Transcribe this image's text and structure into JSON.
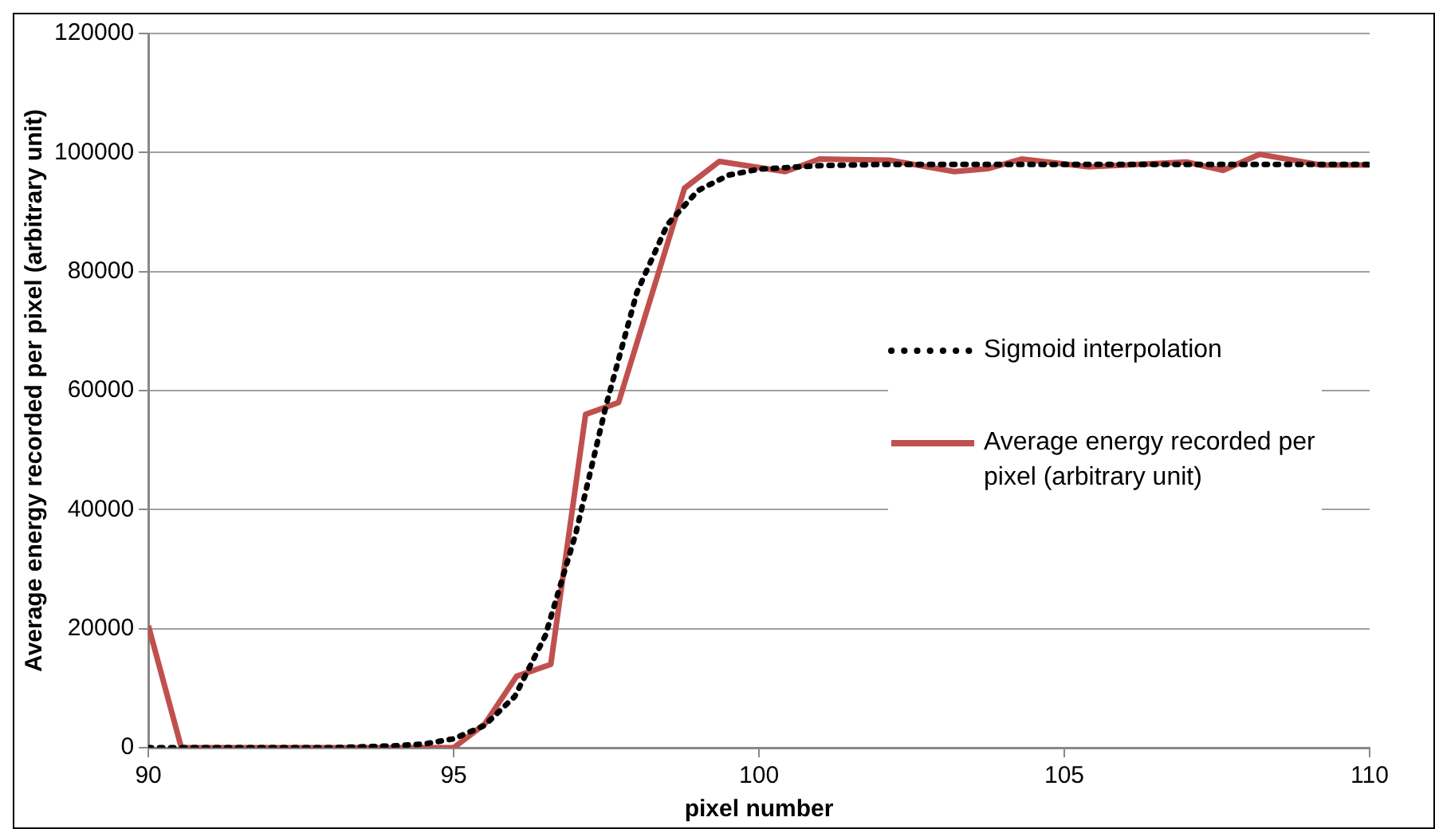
{
  "chart_data": {
    "type": "line",
    "xlabel": "pixel number",
    "ylabel": "Average energy recorded per pixel (arbitrary unit)",
    "xlim": [
      90,
      110
    ],
    "xticks": [
      90,
      95,
      100,
      105,
      110
    ],
    "ylim": [
      0,
      120000
    ],
    "yticks": [
      0,
      20000,
      40000,
      60000,
      80000,
      100000,
      120000
    ],
    "grid": "y",
    "legend": "right",
    "tick_labels": "xy",
    "series": [
      {
        "name": "Sigmoid interpolation",
        "color": "#000000",
        "line_style": "dotted",
        "x": [
          90,
          91,
          92,
          93,
          94,
          94.5,
          95,
          95.5,
          96,
          96.5,
          97,
          97.5,
          98,
          98.5,
          99,
          99.5,
          100,
          101,
          102,
          103,
          104,
          105,
          106,
          107,
          108,
          109,
          110
        ],
        "values": [
          0,
          0,
          0,
          0,
          300,
          600,
          1500,
          3700,
          8600,
          18800,
          36000,
          57700,
          76500,
          87900,
          93600,
          96200,
          97200,
          97800,
          98000,
          98000,
          98000,
          98000,
          98000,
          98000,
          98000,
          98000,
          98000
        ]
      },
      {
        "name": "Average energy recorded per pixel (arbitrary unit)",
        "color": "#c0504d",
        "line_style": "solid",
        "x": [
          90,
          90.54,
          95,
          95.51,
          96.03,
          96.59,
          97.16,
          97.7,
          98.78,
          99.35,
          100.43,
          100.99,
          102.14,
          103.2,
          103.76,
          104.3,
          105.4,
          107,
          107.6,
          108.2,
          109.2,
          110
        ],
        "values": [
          20500,
          0,
          0,
          4000,
          12000,
          14000,
          56000,
          58000,
          94000,
          98500,
          96800,
          98900,
          98700,
          96800,
          97300,
          98900,
          97600,
          98400,
          97000,
          99700,
          97900,
          97900
        ]
      }
    ]
  }
}
